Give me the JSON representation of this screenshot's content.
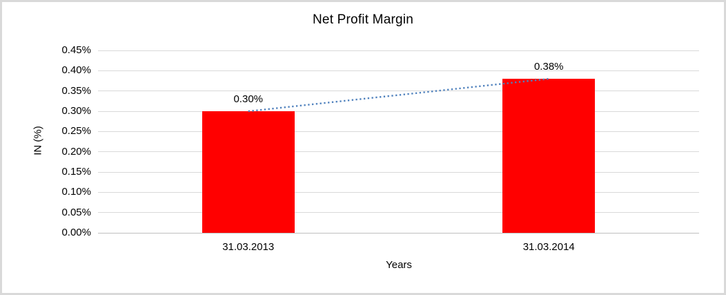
{
  "chart_data": {
    "type": "bar",
    "title": "Net Profit Margin",
    "xlabel": "Years",
    "ylabel": "IN (%)",
    "categories": [
      "31.03.2013",
      "31.03.2014"
    ],
    "values": [
      0.3,
      0.38
    ],
    "data_labels": [
      "0.30%",
      "0.38%"
    ],
    "unit": "%",
    "ylim": [
      0,
      0.45
    ],
    "ytick_step": 0.05,
    "ytick_labels": [
      "0.00%",
      "0.05%",
      "0.10%",
      "0.15%",
      "0.20%",
      "0.25%",
      "0.30%",
      "0.35%",
      "0.40%",
      "0.45%"
    ],
    "grid": true,
    "legend": "none",
    "trendline": {
      "type": "linear",
      "style": "dotted",
      "from_value": 0.3,
      "to_value": 0.38
    },
    "colors": {
      "bar": "#FF0000",
      "trendline": "#4F81BD",
      "gridline": "#D9D9D9",
      "axis_line": "#BFBFBF",
      "frame_border": "#D9D9D9",
      "text": "#000000"
    }
  }
}
